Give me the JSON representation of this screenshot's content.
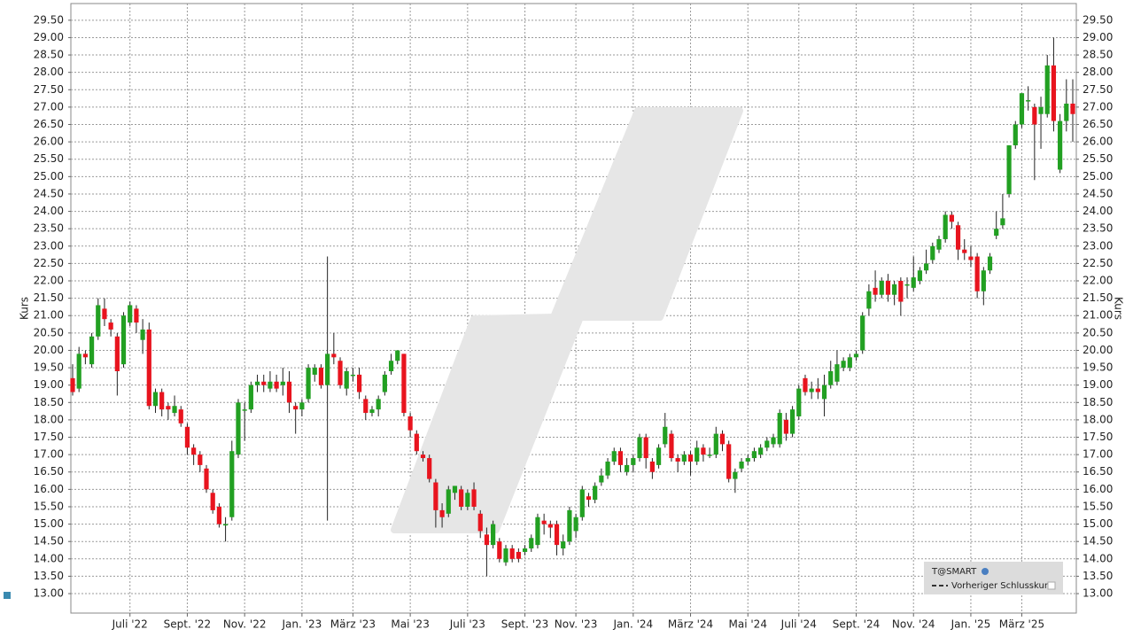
{
  "chart_data": {
    "type": "candlestick",
    "series_name": "T@SMART",
    "previous_close_label": "Vorheriger Schlusskurs",
    "ylabel": "Kurs",
    "up_color": "#22a022",
    "down_color": "#e8141e",
    "grid": true,
    "ylim": [
      12.44,
      29.98
    ],
    "yticks": [
      {
        "value": 13,
        "label": "13.00"
      },
      {
        "value": 13.5,
        "label": "13.50"
      },
      {
        "value": 14,
        "label": "14.00"
      },
      {
        "value": 14.5,
        "label": "14.50"
      },
      {
        "value": 15,
        "label": "15.00"
      },
      {
        "value": 15.5,
        "label": "15.50"
      },
      {
        "value": 16,
        "label": "16.00"
      },
      {
        "value": 16.5,
        "label": "16.50"
      },
      {
        "value": 17,
        "label": "17.00"
      },
      {
        "value": 17.5,
        "label": "17.50"
      },
      {
        "value": 18,
        "label": "18.00"
      },
      {
        "value": 18.5,
        "label": "18.50"
      },
      {
        "value": 19,
        "label": "19.00"
      },
      {
        "value": 19.5,
        "label": "19.50"
      },
      {
        "value": 20,
        "label": "20.00"
      },
      {
        "value": 20.5,
        "label": "20.50"
      },
      {
        "value": 21,
        "label": "21.00"
      },
      {
        "value": 21.5,
        "label": "21.50"
      },
      {
        "value": 22,
        "label": "22.00"
      },
      {
        "value": 22.5,
        "label": "22.50"
      },
      {
        "value": 23,
        "label": "23.00"
      },
      {
        "value": 23.5,
        "label": "23.50"
      },
      {
        "value": 24,
        "label": "24.00"
      },
      {
        "value": 24.5,
        "label": "24.50"
      },
      {
        "value": 25,
        "label": "25.00"
      },
      {
        "value": 25.5,
        "label": "25.50"
      },
      {
        "value": 26,
        "label": "26.00"
      },
      {
        "value": 26.5,
        "label": "26.50"
      },
      {
        "value": 27,
        "label": "27.00"
      },
      {
        "value": 27.5,
        "label": "27.50"
      },
      {
        "value": 28,
        "label": "28.00"
      },
      {
        "value": 28.5,
        "label": "28.50"
      },
      {
        "value": 29,
        "label": "29.00"
      },
      {
        "value": 29.5,
        "label": "29.50"
      }
    ],
    "categories": [
      null,
      null,
      null,
      null,
      null,
      null,
      null,
      null,
      null,
      "Juli '22",
      null,
      null,
      null,
      null,
      null,
      null,
      null,
      null,
      "Sept. '22",
      null,
      null,
      null,
      null,
      null,
      null,
      null,
      null,
      "Nov. '22",
      null,
      null,
      null,
      null,
      null,
      null,
      null,
      null,
      "Jan. '23",
      null,
      null,
      null,
      null,
      null,
      null,
      null,
      "März '23",
      null,
      null,
      null,
      null,
      null,
      null,
      null,
      null,
      "Mai '23",
      null,
      null,
      null,
      null,
      null,
      null,
      null,
      null,
      "Juli '23",
      null,
      null,
      null,
      null,
      null,
      null,
      null,
      null,
      "Sept. '23",
      null,
      null,
      null,
      null,
      null,
      null,
      null,
      "Nov. '23",
      null,
      null,
      null,
      null,
      null,
      null,
      null,
      null,
      "Jan. '24",
      null,
      null,
      null,
      null,
      null,
      null,
      null,
      null,
      "März '24",
      null,
      null,
      null,
      null,
      null,
      null,
      null,
      null,
      "Mai '24",
      null,
      null,
      null,
      null,
      null,
      null,
      null,
      "Juli '24",
      null,
      null,
      null,
      null,
      null,
      null,
      null,
      null,
      "Sept. '24",
      null,
      null,
      null,
      null,
      null,
      null,
      null,
      null,
      "Nov. '24",
      null,
      null,
      null,
      null,
      null,
      null,
      null,
      null,
      "Jan. '25",
      null,
      null,
      null,
      null,
      null,
      null,
      null,
      "März '25",
      null,
      null,
      null,
      null,
      null,
      null,
      null,
      null
    ],
    "open": [
      19.2,
      18.9,
      19.9,
      19.6,
      20.4,
      21.2,
      20.8,
      20.4,
      19.6,
      20.8,
      21.2,
      20.3,
      20.6,
      18.4,
      18.8,
      18.4,
      18.2,
      18.3,
      17.8,
      17.2,
      17.0,
      16.6,
      15.9,
      15.5,
      15.0,
      15.2,
      17.0,
      18.3,
      18.3,
      19.0,
      19.1,
      18.9,
      19.1,
      19.0,
      19.1,
      18.4,
      18.3,
      18.6,
      19.3,
      19.5,
      19.0,
      19.9,
      19.7,
      18.9,
      19.3,
      19.3,
      18.6,
      18.2,
      18.3,
      18.8,
      19.4,
      19.7,
      19.9,
      18.1,
      17.6,
      17.0,
      16.9,
      16.2,
      15.4,
      15.3,
      15.9,
      16.0,
      15.5,
      16.0,
      15.3,
      14.7,
      14.4,
      14.5,
      13.9,
      14.3,
      14.2,
      14.2,
      14.3,
      14.4,
      15.1,
      15.0,
      15.0,
      14.3,
      14.5,
      14.8,
      15.2,
      15.8,
      15.7,
      16.2,
      16.4,
      16.8,
      17.1,
      16.5,
      16.7,
      16.9,
      17.5,
      16.8,
      16.7,
      17.3,
      17.6,
      16.9,
      16.8,
      17.0,
      16.8,
      17.2,
      17.0,
      17.0,
      17.6,
      17.3,
      16.3,
      16.6,
      16.8,
      16.9,
      17.0,
      17.2,
      17.3,
      17.3,
      18.0,
      17.6,
      18.1,
      19.2,
      18.8,
      18.9,
      18.6,
      19.0,
      19.1,
      19.5,
      19.5,
      19.8,
      20.0,
      21.2,
      21.8,
      21.6,
      22.0,
      21.6,
      22.0,
      21.9,
      21.8,
      22.0,
      22.3,
      22.6,
      22.9,
      23.2,
      23.9,
      23.6,
      22.9,
      22.7,
      22.7,
      21.7,
      22.3,
      23.3,
      23.6,
      24.5,
      25.9,
      26.5,
      27.2,
      27.0,
      26.8,
      26.8,
      28.2,
      25.2,
      26.6,
      27.1
    ],
    "high": [
      19.6,
      20.1,
      20.0,
      20.5,
      21.5,
      21.5,
      20.9,
      20.5,
      21.1,
      21.4,
      21.3,
      20.9,
      20.8,
      18.9,
      18.9,
      18.5,
      18.7,
      18.4,
      17.9,
      17.3,
      17.1,
      16.7,
      16.0,
      15.6,
      15.2,
      17.4,
      18.6,
      18.5,
      19.1,
      19.3,
      19.3,
      19.4,
      19.3,
      19.5,
      19.4,
      18.5,
      18.6,
      19.6,
      19.6,
      19.6,
      22.7,
      20.5,
      19.8,
      19.5,
      19.5,
      19.5,
      18.7,
      18.4,
      18.7,
      19.4,
      19.9,
      20.0,
      19.9,
      18.2,
      17.7,
      17.1,
      17.0,
      16.3,
      15.6,
      16.1,
      16.1,
      16.1,
      16.0,
      16.2,
      15.4,
      14.9,
      15.1,
      14.6,
      14.4,
      14.4,
      14.3,
      14.4,
      14.7,
      15.3,
      15.3,
      15.1,
      15.1,
      14.7,
      15.5,
      15.3,
      16.1,
      15.9,
      16.2,
      16.6,
      16.9,
      17.2,
      17.2,
      16.9,
      17.0,
      17.6,
      17.6,
      16.9,
      17.3,
      18.2,
      17.7,
      17.0,
      17.1,
      17.1,
      17.4,
      17.3,
      17.2,
      17.8,
      17.7,
      17.4,
      16.6,
      16.9,
      17.0,
      17.2,
      17.3,
      17.5,
      17.6,
      18.3,
      18.2,
      18.4,
      19.0,
      19.3,
      19.1,
      19.2,
      19.3,
      19.7,
      20.0,
      19.8,
      19.9,
      20.0,
      21.1,
      21.9,
      22.3,
      22.1,
      22.2,
      22.0,
      22.1,
      22.1,
      22.7,
      22.4,
      22.9,
      23.1,
      23.3,
      24.0,
      24.0,
      23.7,
      23.2,
      23.0,
      22.8,
      22.4,
      22.8,
      24.0,
      24.5,
      25.9,
      26.6,
      27.4,
      27.6,
      27.1,
      27.3,
      28.5,
      29.0,
      26.8,
      27.8,
      27.8
    ],
    "low": [
      18.7,
      18.8,
      19.6,
      19.5,
      20.3,
      20.7,
      20.4,
      18.7,
      19.5,
      20.7,
      20.5,
      19.9,
      18.3,
      18.2,
      18.1,
      18.0,
      18.1,
      17.8,
      17.0,
      16.7,
      16.5,
      15.9,
      15.3,
      14.9,
      14.5,
      15.1,
      16.9,
      17.4,
      18.2,
      18.8,
      18.8,
      18.8,
      18.8,
      18.7,
      18.2,
      17.6,
      18.1,
      18.5,
      19.1,
      18.9,
      15.1,
      19.6,
      18.9,
      18.7,
      19.1,
      18.6,
      18.0,
      18.1,
      18.1,
      18.7,
      19.3,
      19.6,
      18.1,
      17.5,
      17.0,
      16.8,
      16.2,
      14.9,
      14.9,
      15.2,
      15.7,
      15.4,
      15.4,
      15.4,
      14.6,
      13.5,
      14.3,
      13.9,
      13.8,
      13.9,
      13.9,
      14.1,
      14.2,
      14.3,
      14.7,
      14.6,
      14.1,
      14.1,
      14.4,
      14.6,
      15.1,
      15.5,
      15.6,
      16.1,
      16.3,
      16.7,
      16.5,
      16.4,
      16.5,
      16.8,
      16.6,
      16.3,
      16.6,
      17.2,
      16.8,
      16.5,
      16.7,
      16.4,
      16.7,
      16.8,
      16.9,
      16.9,
      17.1,
      16.2,
      15.9,
      16.5,
      16.7,
      16.8,
      16.9,
      17.1,
      17.2,
      17.2,
      17.4,
      17.5,
      18.0,
      18.7,
      18.6,
      18.6,
      18.1,
      18.9,
      19.0,
      19.4,
      19.4,
      19.7,
      19.9,
      21.0,
      21.4,
      21.5,
      21.4,
      21.3,
      21.0,
      21.5,
      21.7,
      21.9,
      22.2,
      22.5,
      22.8,
      23.1,
      23.5,
      22.6,
      22.6,
      22.4,
      21.5,
      21.3,
      22.2,
      23.2,
      23.5,
      24.4,
      25.8,
      26.4,
      26.9,
      24.9,
      25.8,
      26.7,
      26.3,
      25.1,
      26.3,
      26.0
    ],
    "close": [
      18.8,
      19.9,
      19.8,
      20.4,
      21.3,
      20.9,
      20.6,
      19.4,
      21.0,
      21.3,
      20.8,
      20.6,
      18.4,
      18.8,
      18.3,
      18.3,
      18.4,
      17.9,
      17.2,
      17.0,
      16.7,
      16.0,
      15.4,
      15.0,
      15.0,
      17.1,
      18.5,
      18.3,
      19.0,
      19.1,
      19.0,
      19.1,
      18.9,
      19.1,
      18.5,
      18.3,
      18.5,
      19.5,
      19.5,
      19.0,
      19.9,
      19.8,
      19.0,
      19.4,
      19.3,
      18.8,
      18.2,
      18.3,
      18.6,
      19.3,
      19.7,
      20.0,
      18.2,
      17.7,
      17.1,
      16.9,
      16.3,
      15.4,
      15.2,
      16.0,
      16.1,
      15.5,
      15.9,
      15.5,
      14.8,
      14.4,
      15.0,
      14.0,
      14.3,
      14.0,
      14.0,
      14.3,
      14.6,
      15.2,
      15.0,
      14.9,
      14.4,
      14.5,
      15.4,
      15.2,
      16.0,
      15.7,
      16.1,
      16.4,
      16.8,
      17.1,
      16.7,
      16.7,
      16.9,
      17.5,
      16.9,
      16.5,
      17.2,
      17.8,
      16.9,
      16.8,
      17.0,
      16.8,
      17.2,
      17.0,
      17.0,
      17.6,
      17.3,
      16.3,
      16.5,
      16.8,
      16.9,
      17.1,
      17.2,
      17.4,
      17.5,
      18.2,
      17.6,
      18.3,
      18.9,
      18.8,
      18.9,
      18.8,
      19.0,
      19.4,
      19.6,
      19.7,
      19.8,
      19.9,
      21.0,
      21.7,
      21.6,
      22.0,
      21.6,
      21.9,
      21.4,
      21.9,
      22.1,
      22.3,
      22.5,
      23.0,
      23.2,
      23.9,
      23.7,
      22.9,
      22.8,
      22.6,
      21.7,
      22.3,
      22.7,
      23.5,
      23.8,
      25.9,
      26.5,
      27.4,
      27.2,
      26.5,
      27.0,
      28.2,
      26.6,
      26.6,
      27.1,
      26.8
    ]
  }
}
